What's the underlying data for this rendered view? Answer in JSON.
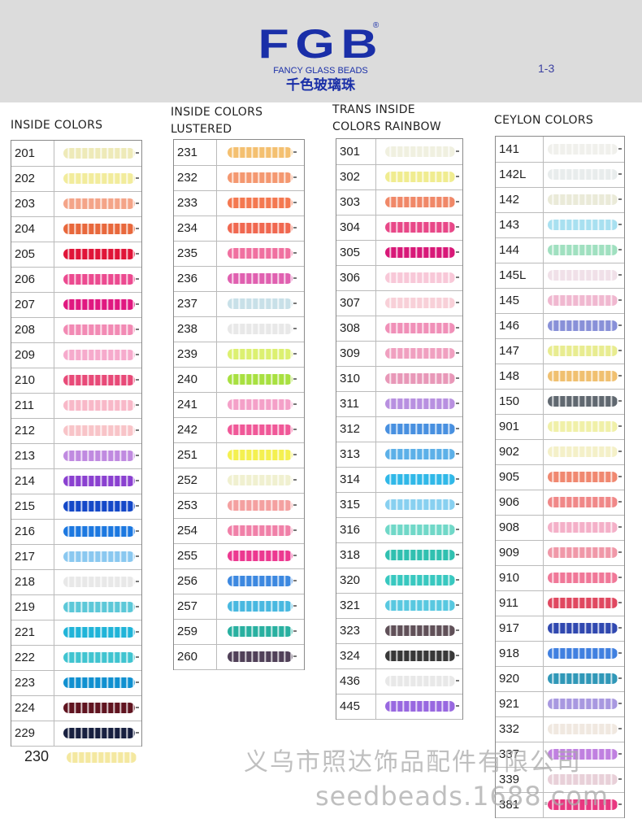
{
  "header": {
    "logo_text": "FGB",
    "logo_reg": "®",
    "subtitle": "FANCY GLASS BEADS",
    "chinese_title": "千色玻璃珠",
    "page_number": "1-3"
  },
  "columns": [
    {
      "title_line1": "INSIDE COLORS",
      "title_line2": "",
      "items": [
        {
          "code": "201",
          "color": "#eeeab8"
        },
        {
          "code": "202",
          "color": "#f2ec9c"
        },
        {
          "code": "203",
          "color": "#f4a488"
        },
        {
          "code": "204",
          "color": "#e8683c"
        },
        {
          "code": "205",
          "color": "#e01438"
        },
        {
          "code": "206",
          "color": "#ec4a90"
        },
        {
          "code": "207",
          "color": "#e01880"
        },
        {
          "code": "208",
          "color": "#f28ab4"
        },
        {
          "code": "209",
          "color": "#f6aacc"
        },
        {
          "code": "210",
          "color": "#e84a78"
        },
        {
          "code": "211",
          "color": "#f8b8c8"
        },
        {
          "code": "212",
          "color": "#f8c4c8"
        },
        {
          "code": "213",
          "color": "#c08ae0"
        },
        {
          "code": "214",
          "color": "#8a40d0"
        },
        {
          "code": "215",
          "color": "#1448c8"
        },
        {
          "code": "216",
          "color": "#1c78e0"
        },
        {
          "code": "217",
          "color": "#8ac8f0"
        },
        {
          "code": "218",
          "color": "#e8e8e8"
        },
        {
          "code": "219",
          "color": "#5cc8d8"
        },
        {
          "code": "221",
          "color": "#20b4d8"
        },
        {
          "code": "222",
          "color": "#40c4d0"
        },
        {
          "code": "223",
          "color": "#1090d0"
        },
        {
          "code": "224",
          "color": "#601420"
        },
        {
          "code": "229",
          "color": "#182040"
        }
      ],
      "extra": {
        "code": "230",
        "color": "#f4e8a0"
      }
    },
    {
      "title_line1": "INSIDE COLORS",
      "title_line2": "LUSTERED",
      "items": [
        {
          "code": "231",
          "color": "#f4c070"
        },
        {
          "code": "232",
          "color": "#f49870"
        },
        {
          "code": "233",
          "color": "#f47850"
        },
        {
          "code": "234",
          "color": "#f06850"
        },
        {
          "code": "235",
          "color": "#f070a0"
        },
        {
          "code": "236",
          "color": "#e060b0"
        },
        {
          "code": "237",
          "color": "#c8e0e8"
        },
        {
          "code": "238",
          "color": "#e8e8e8"
        },
        {
          "code": "239",
          "color": "#dcf070"
        },
        {
          "code": "240",
          "color": "#a8e040"
        },
        {
          "code": "241",
          "color": "#f4a0c8"
        },
        {
          "code": "242",
          "color": "#f05898"
        },
        {
          "code": "251",
          "color": "#f4f050"
        },
        {
          "code": "252",
          "color": "#f0f0d0"
        },
        {
          "code": "253",
          "color": "#f4a0a0"
        },
        {
          "code": "254",
          "color": "#f080a8"
        },
        {
          "code": "255",
          "color": "#ec3890"
        },
        {
          "code": "256",
          "color": "#3c88e0"
        },
        {
          "code": "257",
          "color": "#48b8e0"
        },
        {
          "code": "259",
          "color": "#28b0a0"
        },
        {
          "code": "260",
          "color": "#504058"
        }
      ]
    },
    {
      "title_line1": "TRANS INSIDE",
      "title_line2": "COLORS RAINBOW",
      "items": [
        {
          "code": "301",
          "color": "#f0f0e0"
        },
        {
          "code": "302",
          "color": "#f0ec90"
        },
        {
          "code": "303",
          "color": "#f08868"
        },
        {
          "code": "304",
          "color": "#e84888"
        },
        {
          "code": "305",
          "color": "#d81878"
        },
        {
          "code": "306",
          "color": "#f8c8d8"
        },
        {
          "code": "307",
          "color": "#f8d0d8"
        },
        {
          "code": "308",
          "color": "#f090b8"
        },
        {
          "code": "309",
          "color": "#f0a0c0"
        },
        {
          "code": "310",
          "color": "#e898b8"
        },
        {
          "code": "311",
          "color": "#b890e0"
        },
        {
          "code": "312",
          "color": "#4890e0"
        },
        {
          "code": "313",
          "color": "#5cb0e8"
        },
        {
          "code": "314",
          "color": "#30b8e8"
        },
        {
          "code": "315",
          "color": "#88d0f0"
        },
        {
          "code": "316",
          "color": "#70d8c8"
        },
        {
          "code": "318",
          "color": "#30c0b0"
        },
        {
          "code": "320",
          "color": "#38c8c0"
        },
        {
          "code": "321",
          "color": "#58c8e0"
        },
        {
          "code": "323",
          "color": "#605058"
        },
        {
          "code": "324",
          "color": "#383838"
        },
        {
          "code": "436",
          "color": "#e8e8e8"
        },
        {
          "code": "445",
          "color": "#9868e0"
        }
      ]
    },
    {
      "title_line1": "CEYLON COLORS",
      "title_line2": "",
      "items": [
        {
          "code": "141",
          "color": "#f0f0ec"
        },
        {
          "code": "142L",
          "color": "#e8ecec"
        },
        {
          "code": "142",
          "color": "#eaead8"
        },
        {
          "code": "143",
          "color": "#a8e0f0"
        },
        {
          "code": "144",
          "color": "#a0e0c0"
        },
        {
          "code": "145L",
          "color": "#f0e0e8"
        },
        {
          "code": "145",
          "color": "#f0b8d0"
        },
        {
          "code": "146",
          "color": "#8890d8"
        },
        {
          "code": "147",
          "color": "#e8ec90"
        },
        {
          "code": "148",
          "color": "#f0c070"
        },
        {
          "code": "150",
          "color": "#606870"
        },
        {
          "code": "901",
          "color": "#f0f0a8"
        },
        {
          "code": "902",
          "color": "#f4f0c8"
        },
        {
          "code": "905",
          "color": "#f08870"
        },
        {
          "code": "906",
          "color": "#f08888"
        },
        {
          "code": "908",
          "color": "#f4b0c8"
        },
        {
          "code": "909",
          "color": "#f098a8"
        },
        {
          "code": "910",
          "color": "#f07898"
        },
        {
          "code": "911",
          "color": "#e04860"
        },
        {
          "code": "917",
          "color": "#3048b0"
        },
        {
          "code": "918",
          "color": "#4080e0"
        },
        {
          "code": "920",
          "color": "#3098b8"
        },
        {
          "code": "921",
          "color": "#a898e0"
        },
        {
          "code": "332",
          "color": "#f0e8e0"
        },
        {
          "code": "337",
          "color": "#c080e0"
        },
        {
          "code": "339",
          "color": "#e8d0d8"
        },
        {
          "code": "381",
          "color": "#e83880"
        }
      ]
    }
  ],
  "watermark": {
    "company": "义乌市照达饰品配件有限公司",
    "site": "seedbeads.1688.com"
  }
}
